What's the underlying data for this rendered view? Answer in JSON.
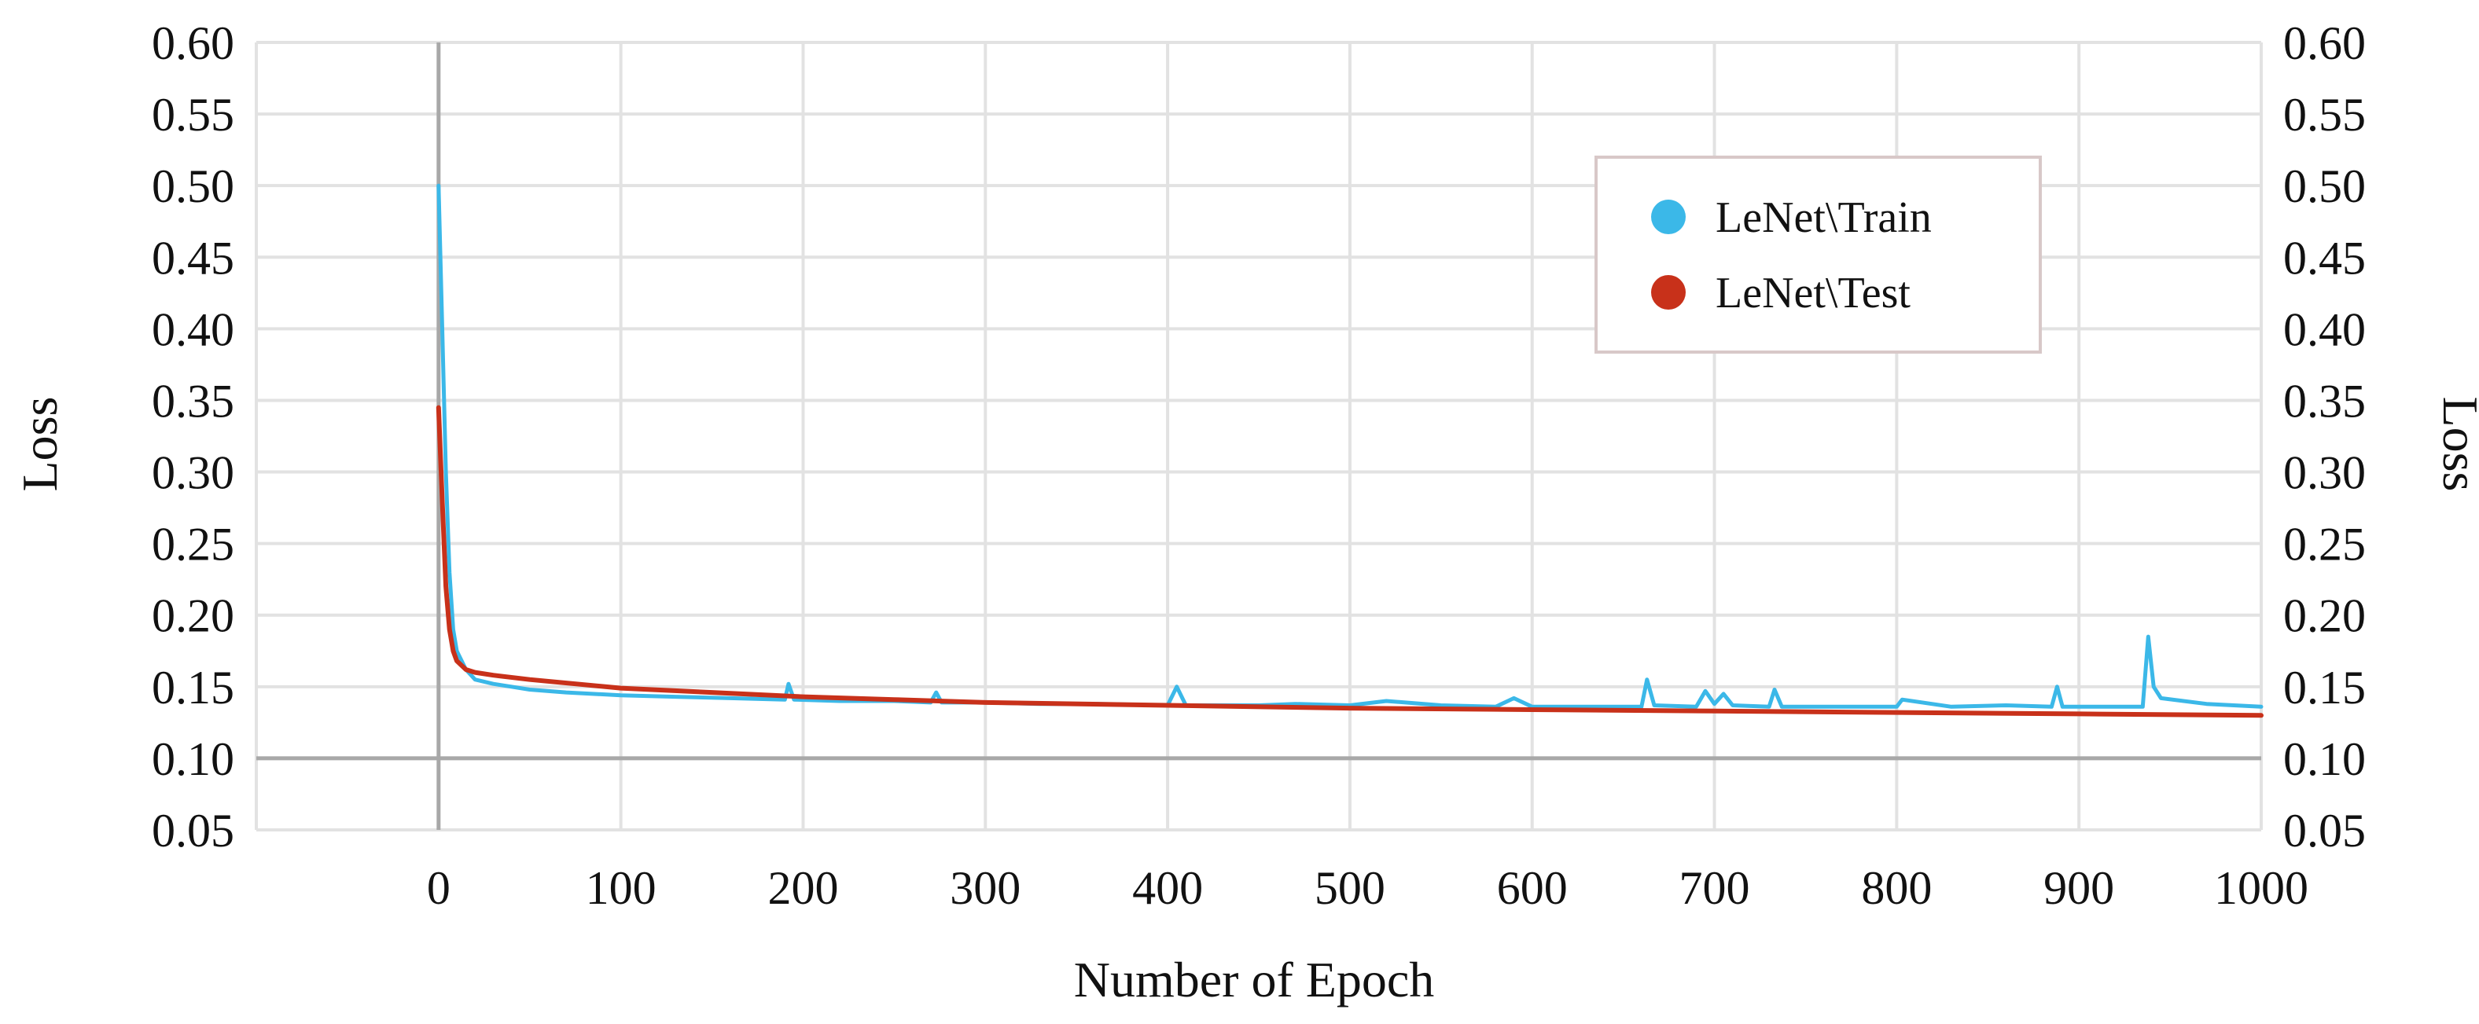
{
  "chart_data": {
    "type": "line",
    "title": "",
    "xlabel": "Number of Epoch",
    "ylabel": "Loss",
    "ylabel_right": "Loss",
    "xlim": [
      -100,
      1000
    ],
    "ylim": [
      0.05,
      0.6
    ],
    "xticks": [
      0,
      100,
      200,
      300,
      400,
      500,
      600,
      700,
      800,
      900,
      1000
    ],
    "yticks": [
      0.05,
      0.1,
      0.15,
      0.2,
      0.25,
      0.3,
      0.35,
      0.4,
      0.45,
      0.5,
      0.55,
      0.6
    ],
    "x_tick_labels": [
      "0",
      "100",
      "200",
      "300",
      "400",
      "500",
      "600",
      "700",
      "800",
      "900",
      "1000"
    ],
    "y_tick_labels": [
      "0.05",
      "0.10",
      "0.15",
      "0.20",
      "0.25",
      "0.30",
      "0.35",
      "0.40",
      "0.45",
      "0.50",
      "0.55",
      "0.60"
    ],
    "grid": true,
    "reference_lines": {
      "x": 0,
      "y": 0.1
    },
    "legend_position": "top-right",
    "series": [
      {
        "name": "LeNet\\Train",
        "color": "#3bb8e8",
        "x": [
          0,
          2,
          4,
          6,
          8,
          10,
          15,
          20,
          30,
          40,
          50,
          70,
          100,
          130,
          160,
          190,
          192,
          195,
          220,
          250,
          270,
          273,
          276,
          300,
          330,
          360,
          400,
          405,
          410,
          450,
          470,
          500,
          520,
          550,
          580,
          590,
          600,
          630,
          660,
          663,
          667,
          690,
          695,
          700,
          705,
          710,
          730,
          733,
          737,
          760,
          800,
          803,
          830,
          860,
          885,
          888,
          891,
          910,
          935,
          938,
          941,
          945,
          970,
          1000
        ],
        "y": [
          0.5,
          0.4,
          0.3,
          0.23,
          0.19,
          0.175,
          0.162,
          0.155,
          0.152,
          0.15,
          0.148,
          0.146,
          0.144,
          0.143,
          0.142,
          0.141,
          0.152,
          0.141,
          0.14,
          0.14,
          0.139,
          0.146,
          0.139,
          0.139,
          0.138,
          0.138,
          0.137,
          0.15,
          0.137,
          0.137,
          0.138,
          0.137,
          0.14,
          0.137,
          0.136,
          0.142,
          0.136,
          0.136,
          0.136,
          0.155,
          0.137,
          0.136,
          0.147,
          0.138,
          0.145,
          0.137,
          0.136,
          0.148,
          0.136,
          0.136,
          0.136,
          0.141,
          0.136,
          0.137,
          0.136,
          0.15,
          0.136,
          0.136,
          0.136,
          0.185,
          0.15,
          0.142,
          0.138,
          0.136
        ]
      },
      {
        "name": "LeNet\\Test",
        "color": "#c8311a",
        "x": [
          0,
          2,
          4,
          6,
          8,
          10,
          15,
          20,
          30,
          50,
          100,
          150,
          200,
          250,
          300,
          400,
          500,
          600,
          700,
          800,
          900,
          1000
        ],
        "y": [
          0.345,
          0.28,
          0.22,
          0.19,
          0.175,
          0.168,
          0.162,
          0.16,
          0.158,
          0.155,
          0.149,
          0.146,
          0.143,
          0.141,
          0.139,
          0.137,
          0.135,
          0.134,
          0.133,
          0.132,
          0.131,
          0.13
        ]
      }
    ]
  }
}
